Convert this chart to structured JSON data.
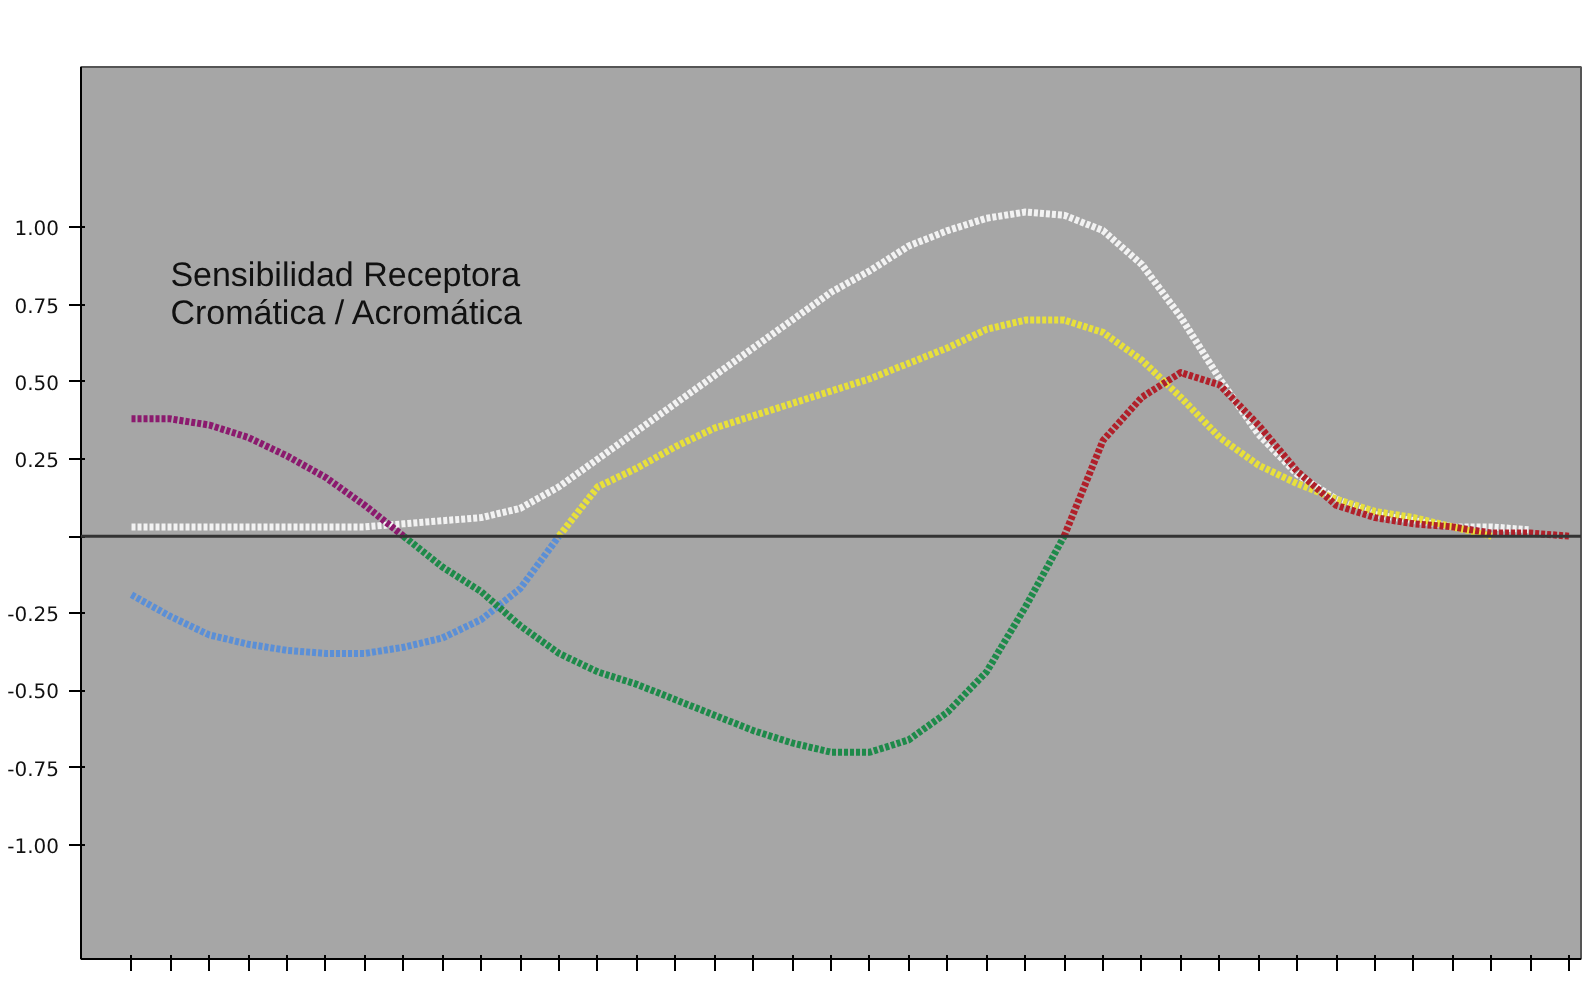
{
  "chart_data": {
    "type": "line",
    "title": "Sensibilidad Receptora\nCromática / Acromática",
    "categories": [
      null,
      null,
      null,
      null,
      null,
      null,
      null,
      null,
      null,
      null,
      null,
      null,
      null,
      null,
      null,
      null,
      null,
      null,
      null,
      null,
      null,
      null,
      null,
      null,
      null,
      null,
      null,
      null,
      null,
      null,
      null,
      null,
      null,
      null,
      null,
      null,
      null,
      null
    ],
    "series": [
      {
        "color": "#f2f2f2",
        "values": [
          0.03,
          0.03,
          0.03,
          0.03,
          0.03,
          0.03,
          0.03,
          0.04,
          0.05,
          0.06,
          0.09,
          0.16,
          0.25,
          0.34,
          0.43,
          0.52,
          0.61,
          0.7,
          0.79,
          0.86,
          0.94,
          0.99,
          1.03,
          1.05,
          1.04,
          0.99,
          0.88,
          0.71,
          0.51,
          0.33,
          0.2,
          0.12,
          0.07,
          0.05,
          0.03,
          0.03,
          0.02,
          null
        ]
      },
      {
        "color": "#5b8fd6",
        "values": [
          -0.19,
          -0.26,
          -0.32,
          -0.35,
          -0.37,
          -0.38,
          -0.38,
          -0.36,
          -0.33,
          -0.27,
          -0.17,
          0,
          null,
          null,
          null,
          null,
          null,
          null,
          null,
          null,
          null,
          null,
          null,
          null,
          null,
          null,
          null,
          null,
          null,
          null,
          null,
          null,
          null,
          null,
          null,
          null,
          null,
          null
        ]
      },
      {
        "color": "#e8e03a",
        "values": [
          null,
          null,
          null,
          null,
          null,
          null,
          null,
          null,
          null,
          null,
          null,
          0,
          0.16,
          0.22,
          0.29,
          0.35,
          0.39,
          0.43,
          0.47,
          0.51,
          0.56,
          0.61,
          0.67,
          0.7,
          0.7,
          0.66,
          0.57,
          0.45,
          0.32,
          0.23,
          0.17,
          0.12,
          0.08,
          0.06,
          0.03,
          0,
          null,
          null
        ]
      },
      {
        "color": "#8b1a6e",
        "values": [
          0.38,
          0.38,
          0.36,
          0.32,
          0.26,
          0.19,
          0.1,
          0,
          null,
          null,
          null,
          null,
          null,
          null,
          null,
          null,
          null,
          null,
          null,
          null,
          null,
          null,
          null,
          null,
          null,
          null,
          null,
          null,
          null,
          null,
          null,
          null,
          null,
          null,
          null,
          null,
          null,
          null
        ]
      },
      {
        "color": "#1e8a4a",
        "values": [
          null,
          null,
          null,
          null,
          null,
          null,
          null,
          0,
          -0.1,
          -0.18,
          -0.29,
          -0.38,
          -0.44,
          -0.48,
          -0.53,
          -0.58,
          -0.63,
          -0.67,
          -0.7,
          -0.7,
          -0.66,
          -0.57,
          -0.44,
          -0.23,
          0,
          null,
          null,
          null,
          null,
          null,
          null,
          null,
          null,
          null,
          null,
          null,
          null,
          null
        ]
      },
      {
        "color": "#b0202a",
        "values": [
          null,
          null,
          null,
          null,
          null,
          null,
          null,
          null,
          null,
          null,
          null,
          null,
          null,
          null,
          null,
          null,
          null,
          null,
          null,
          null,
          null,
          null,
          null,
          null,
          0,
          0.31,
          0.45,
          0.53,
          0.49,
          0.36,
          0.21,
          0.1,
          0.06,
          0.04,
          0.03,
          0.01,
          0.01,
          0
        ]
      }
    ],
    "ylim": [
      -1.37,
      1.52
    ],
    "yticks": [
      {
        "value": 1,
        "label": "1.00"
      },
      {
        "value": 0.75,
        "label": "0.75"
      },
      {
        "value": 0.5,
        "label": "0.50"
      },
      {
        "value": 0.25,
        "label": "0.25"
      },
      {
        "value": 0,
        "label": null
      },
      {
        "value": -0.25,
        "label": "-0.25"
      },
      {
        "value": -0.5,
        "label": "-0.50"
      },
      {
        "value": -0.75,
        "label": "-0.75"
      },
      {
        "value": -1,
        "label": "-1.00"
      }
    ],
    "tick_labels": "y",
    "grid": false,
    "marker": "none",
    "line_style": "dotted",
    "ref_lines": [
      {
        "axis": "y",
        "value": 0,
        "color": "#333333"
      }
    ]
  }
}
